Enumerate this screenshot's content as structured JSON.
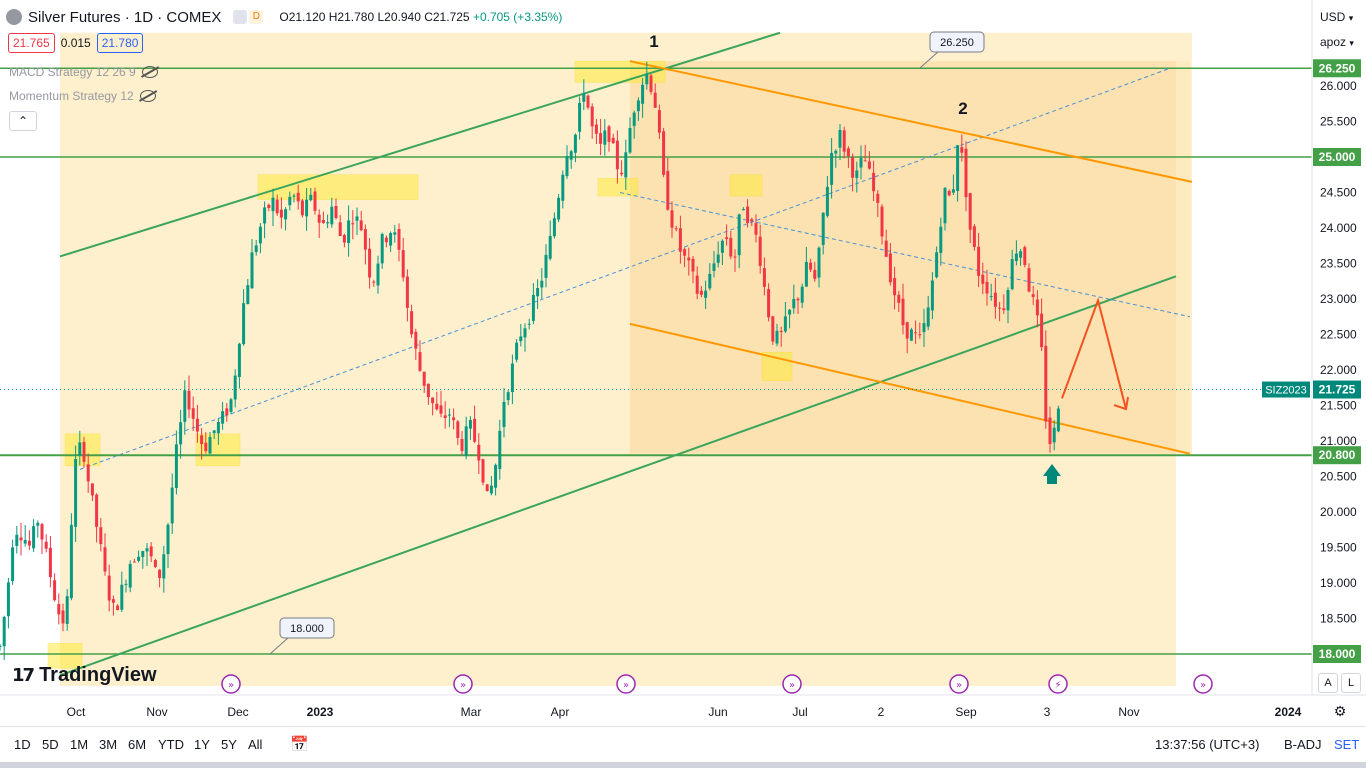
{
  "header": {
    "title": "Silver Futures · 1D · COMEX",
    "badge_left": "",
    "badge_right": "D",
    "open": "O21.120",
    "high": "H21.780",
    "low": "L20.940",
    "close": "C21.725",
    "change": "+0.705 (+3.35%)",
    "sell_price": "21.765",
    "spread": "0.015",
    "buy_price": "21.780"
  },
  "indicators": [
    {
      "label": "MACD Strategy 12 26 9"
    },
    {
      "label": "Momentum Strategy 12"
    }
  ],
  "right_panel": {
    "currency": "USD",
    "scale": "apoz"
  },
  "bottom_bar": {
    "timeframes": [
      "1D",
      "5D",
      "1M",
      "3M",
      "6M",
      "YTD",
      "1Y",
      "5Y",
      "All"
    ],
    "clock": "13:37:56 (UTC+3)",
    "adjust": "B-ADJ",
    "session": "SET"
  },
  "brand": "TradingView",
  "axis_buttons": [
    "A",
    "L"
  ],
  "colors": {
    "bull": "#089981",
    "bear": "#f23645",
    "support": "#4caf50",
    "resistance_orange": "#ff9800",
    "channel_fill": "#fde9b8",
    "zone_yellow": "#ffeb3b",
    "forecast": "#f4511e",
    "trend_dashed": "#2962ff"
  },
  "chart_data": {
    "type": "candlestick",
    "symbol": "SIZ2023",
    "last_price": 21.725,
    "ylim": [
      17.55,
      26.75
    ],
    "y_ticks": [
      18.0,
      18.5,
      19.0,
      19.5,
      20.0,
      20.5,
      21.0,
      21.5,
      22.0,
      22.5,
      23.0,
      23.5,
      24.0,
      24.5,
      25.0,
      25.5,
      26.0
    ],
    "x_labels": [
      "Oct",
      "Nov",
      "Dec",
      "2023",
      "Mar",
      "Apr",
      "Jun",
      "Jul",
      "2",
      "Sep",
      "3",
      "Nov",
      "2024"
    ],
    "horizontal_levels": [
      {
        "label": "26.250",
        "value": 26.25
      },
      {
        "label": "25.000",
        "value": 25.0
      },
      {
        "label": "20.800",
        "value": 20.8
      },
      {
        "label": "18.000",
        "value": 18.0
      }
    ],
    "price_callouts": [
      "26.250",
      "18.000"
    ],
    "wave_labels": [
      "1",
      "2"
    ],
    "price_path": [
      [
        0,
        18.1
      ],
      [
        6,
        18.7
      ],
      [
        14,
        19.8
      ],
      [
        22,
        19.7
      ],
      [
        30,
        19.5
      ],
      [
        38,
        19.9
      ],
      [
        46,
        19.4
      ],
      [
        52,
        19.0
      ],
      [
        58,
        18.6
      ],
      [
        66,
        18.4
      ],
      [
        74,
        20.6
      ],
      [
        82,
        21.0
      ],
      [
        90,
        20.3
      ],
      [
        98,
        19.7
      ],
      [
        106,
        19.0
      ],
      [
        114,
        18.6
      ],
      [
        122,
        18.9
      ],
      [
        130,
        19.3
      ],
      [
        140,
        19.5
      ],
      [
        150,
        19.4
      ],
      [
        158,
        19.0
      ],
      [
        166,
        19.6
      ],
      [
        176,
        20.8
      ],
      [
        186,
        21.7
      ],
      [
        196,
        21.2
      ],
      [
        204,
        20.9
      ],
      [
        212,
        21.1
      ],
      [
        222,
        21.3
      ],
      [
        232,
        21.6
      ],
      [
        242,
        22.8
      ],
      [
        252,
        23.6
      ],
      [
        262,
        24.1
      ],
      [
        272,
        24.4
      ],
      [
        282,
        24.1
      ],
      [
        292,
        24.5
      ],
      [
        302,
        24.2
      ],
      [
        312,
        24.4
      ],
      [
        322,
        24.0
      ],
      [
        332,
        24.3
      ],
      [
        342,
        23.8
      ],
      [
        352,
        24.2
      ],
      [
        362,
        24.0
      ],
      [
        372,
        23.2
      ],
      [
        382,
        23.8
      ],
      [
        392,
        24.0
      ],
      [
        402,
        23.5
      ],
      [
        410,
        22.6
      ],
      [
        420,
        22.0
      ],
      [
        430,
        21.6
      ],
      [
        440,
        21.3
      ],
      [
        450,
        21.4
      ],
      [
        460,
        20.9
      ],
      [
        470,
        21.2
      ],
      [
        480,
        20.8
      ],
      [
        488,
        20.1
      ],
      [
        496,
        20.7
      ],
      [
        504,
        21.6
      ],
      [
        512,
        22.0
      ],
      [
        520,
        22.5
      ],
      [
        530,
        22.8
      ],
      [
        540,
        23.2
      ],
      [
        550,
        23.8
      ],
      [
        560,
        24.6
      ],
      [
        566,
        25.1
      ],
      [
        574,
        25.2
      ],
      [
        584,
        26.0
      ],
      [
        592,
        25.4
      ],
      [
        600,
        25.1
      ],
      [
        608,
        25.4
      ],
      [
        616,
        24.9
      ],
      [
        624,
        24.8
      ],
      [
        632,
        25.6
      ],
      [
        640,
        26.0
      ],
      [
        648,
        26.2
      ],
      [
        656,
        25.7
      ],
      [
        664,
        24.6
      ],
      [
        672,
        24.1
      ],
      [
        680,
        23.7
      ],
      [
        690,
        23.4
      ],
      [
        700,
        23.0
      ],
      [
        710,
        23.3
      ],
      [
        718,
        23.7
      ],
      [
        726,
        23.9
      ],
      [
        734,
        23.5
      ],
      [
        742,
        24.4
      ],
      [
        750,
        24.1
      ],
      [
        758,
        23.8
      ],
      [
        766,
        23.0
      ],
      [
        774,
        22.4
      ],
      [
        782,
        22.5
      ],
      [
        792,
        22.9
      ],
      [
        800,
        23.1
      ],
      [
        808,
        23.5
      ],
      [
        816,
        23.2
      ],
      [
        824,
        24.3
      ],
      [
        832,
        25.1
      ],
      [
        840,
        25.3
      ],
      [
        848,
        25.0
      ],
      [
        856,
        24.7
      ],
      [
        864,
        25.0
      ],
      [
        872,
        24.6
      ],
      [
        880,
        24.1
      ],
      [
        888,
        23.5
      ],
      [
        896,
        23.0
      ],
      [
        904,
        22.6
      ],
      [
        912,
        22.5
      ],
      [
        920,
        22.4
      ],
      [
        928,
        22.8
      ],
      [
        936,
        23.6
      ],
      [
        944,
        24.5
      ],
      [
        952,
        24.4
      ],
      [
        958,
        25.3
      ],
      [
        964,
        24.8
      ],
      [
        970,
        24.0
      ],
      [
        978,
        23.4
      ],
      [
        986,
        23.2
      ],
      [
        994,
        23.0
      ],
      [
        1002,
        22.8
      ],
      [
        1010,
        23.4
      ],
      [
        1018,
        23.8
      ],
      [
        1024,
        23.6
      ],
      [
        1030,
        23.1
      ],
      [
        1036,
        22.8
      ],
      [
        1042,
        22.2
      ],
      [
        1046,
        21.3
      ],
      [
        1050,
        21.0
      ],
      [
        1054,
        21.1
      ],
      [
        1060,
        21.72
      ]
    ],
    "x_domain": [
      0,
      1312
    ],
    "main_channel": {
      "lower": [
        [
          60,
          17.7
        ],
        [
          1176,
          23.32
        ]
      ],
      "upper": [
        [
          60,
          23.6
        ],
        [
          780,
          26.75
        ]
      ]
    },
    "mid_dashed": [
      [
        80,
        20.6
      ],
      [
        1170,
        26.25
      ]
    ],
    "descending_channel": {
      "upper": [
        [
          630,
          26.35
        ],
        [
          1192,
          24.65
        ]
      ],
      "lower": [
        [
          630,
          22.65
        ],
        [
          1190,
          20.82
        ]
      ]
    },
    "desc_mid_dashed": [
      [
        620,
        24.5
      ],
      [
        1190,
        22.75
      ]
    ],
    "forecast_path": [
      [
        1062,
        21.6
      ],
      [
        1098,
        22.98
      ],
      [
        1126,
        21.45
      ]
    ],
    "marker_up_x": 1052,
    "fill_rect": [
      [
        60,
        26.75
      ],
      [
        1176,
        17.55
      ]
    ],
    "desc_fill_rect": [
      [
        630,
        26.35
      ],
      [
        1190,
        20.82
      ]
    ],
    "zones": [
      {
        "x1": 575,
        "x2": 665,
        "y1": 26.35,
        "y2": 26.05
      },
      {
        "x1": 258,
        "x2": 418,
        "y1": 24.75,
        "y2": 24.4
      },
      {
        "x1": 598,
        "x2": 638,
        "y1": 24.7,
        "y2": 24.45
      },
      {
        "x1": 730,
        "x2": 762,
        "y1": 24.75,
        "y2": 24.45
      },
      {
        "x1": 762,
        "x2": 792,
        "y1": 22.25,
        "y2": 21.85
      },
      {
        "x1": 65,
        "x2": 100,
        "y1": 21.1,
        "y2": 20.65
      },
      {
        "x1": 196,
        "x2": 240,
        "y1": 21.1,
        "y2": 20.65
      },
      {
        "x1": 48,
        "x2": 82,
        "y1": 18.15,
        "y2": 17.8
      }
    ],
    "event_icon_x": [
      231,
      463,
      626,
      792,
      959,
      1058,
      1203
    ]
  }
}
